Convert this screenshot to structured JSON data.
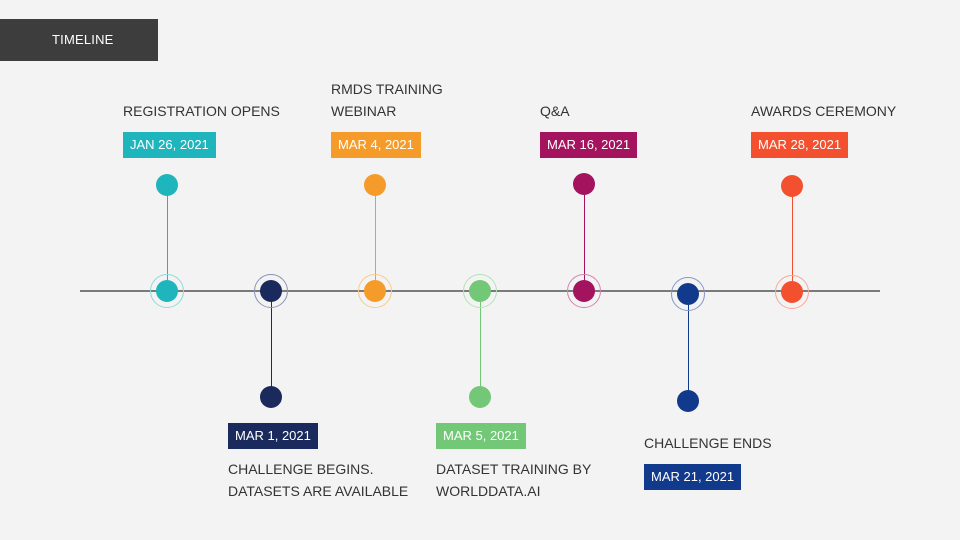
{
  "header": {
    "title": "TIMELINE"
  },
  "events": [
    {
      "title": "REGISTRATION OPENS",
      "date": "JAN 26, 2021",
      "color": "#1eb5bd"
    },
    {
      "title": "CHALLENGE BEGINS.\nDATASETS ARE AVAILABLE",
      "date": "MAR 1, 2021",
      "color": "#1b2a5c"
    },
    {
      "title": "RMDS TRAINING\nWEBINAR",
      "date": "MAR 4, 2021",
      "color": "#f49b2a"
    },
    {
      "title": "DATASET TRAINING BY\nWORLDDATA.AI",
      "date": "MAR 5, 2021",
      "color": "#72c877"
    },
    {
      "title": "Q&A",
      "date": "MAR 16, 2021",
      "color": "#a3135e"
    },
    {
      "title": "CHALLENGE ENDS",
      "date": "MAR 21, 2021",
      "color": "#123a8c"
    },
    {
      "title": "AWARDS CEREMONY",
      "date": "MAR 28, 2021",
      "color": "#f2502e"
    }
  ]
}
